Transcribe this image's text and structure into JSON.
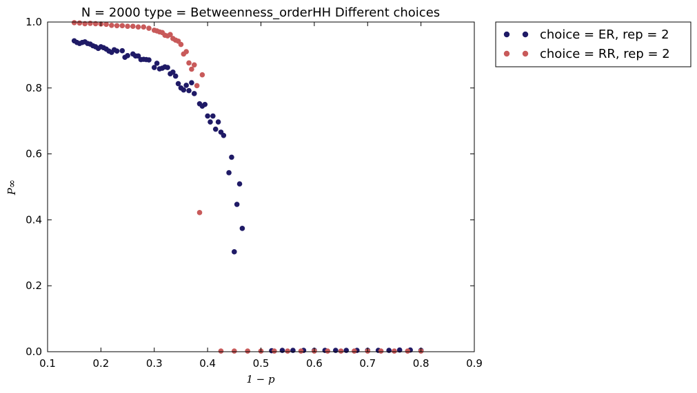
{
  "chart_data": {
    "type": "scatter",
    "title": "N = 2000 type = Betweenness_orderHH Different choices",
    "xlabel": "1 − p",
    "ylabel": "P∞",
    "xlim": [
      0.1,
      0.9
    ],
    "ylim": [
      0.0,
      1.0
    ],
    "xticks": [
      "0.1",
      "0.2",
      "0.3",
      "0.4",
      "0.5",
      "0.6",
      "0.7",
      "0.8",
      "0.9"
    ],
    "yticks": [
      "0.0",
      "0.2",
      "0.4",
      "0.6",
      "0.8",
      "1.0"
    ],
    "grid": false,
    "legend_position": "outside-top-right",
    "series": [
      {
        "name": "choice = ER, rep = 2",
        "color": "#1f1a66",
        "points": [
          [
            0.15,
            0.943
          ],
          [
            0.155,
            0.938
          ],
          [
            0.16,
            0.935
          ],
          [
            0.165,
            0.938
          ],
          [
            0.17,
            0.94
          ],
          [
            0.175,
            0.935
          ],
          [
            0.18,
            0.933
          ],
          [
            0.185,
            0.928
          ],
          [
            0.19,
            0.925
          ],
          [
            0.195,
            0.92
          ],
          [
            0.2,
            0.925
          ],
          [
            0.205,
            0.922
          ],
          [
            0.21,
            0.918
          ],
          [
            0.215,
            0.912
          ],
          [
            0.22,
            0.908
          ],
          [
            0.225,
            0.916
          ],
          [
            0.23,
            0.912
          ],
          [
            0.24,
            0.913
          ],
          [
            0.245,
            0.893
          ],
          [
            0.25,
            0.898
          ],
          [
            0.26,
            0.903
          ],
          [
            0.265,
            0.897
          ],
          [
            0.27,
            0.897
          ],
          [
            0.275,
            0.886
          ],
          [
            0.28,
            0.887
          ],
          [
            0.285,
            0.886
          ],
          [
            0.29,
            0.885
          ],
          [
            0.3,
            0.862
          ],
          [
            0.305,
            0.875
          ],
          [
            0.31,
            0.858
          ],
          [
            0.315,
            0.86
          ],
          [
            0.32,
            0.864
          ],
          [
            0.325,
            0.862
          ],
          [
            0.33,
            0.843
          ],
          [
            0.335,
            0.848
          ],
          [
            0.34,
            0.836
          ],
          [
            0.345,
            0.813
          ],
          [
            0.35,
            0.8
          ],
          [
            0.355,
            0.794
          ],
          [
            0.36,
            0.808
          ],
          [
            0.365,
            0.792
          ],
          [
            0.37,
            0.816
          ],
          [
            0.375,
            0.783
          ],
          [
            0.385,
            0.752
          ],
          [
            0.39,
            0.745
          ],
          [
            0.395,
            0.75
          ],
          [
            0.4,
            0.715
          ],
          [
            0.405,
            0.697
          ],
          [
            0.41,
            0.715
          ],
          [
            0.415,
            0.675
          ],
          [
            0.42,
            0.697
          ],
          [
            0.425,
            0.666
          ],
          [
            0.43,
            0.656
          ],
          [
            0.44,
            0.543
          ],
          [
            0.445,
            0.59
          ],
          [
            0.45,
            0.303
          ],
          [
            0.455,
            0.447
          ],
          [
            0.46,
            0.509
          ],
          [
            0.465,
            0.374
          ],
          [
            0.52,
            0.003
          ],
          [
            0.54,
            0.004
          ],
          [
            0.56,
            0.004
          ],
          [
            0.58,
            0.004
          ],
          [
            0.6,
            0.004
          ],
          [
            0.62,
            0.004
          ],
          [
            0.64,
            0.004
          ],
          [
            0.66,
            0.004
          ],
          [
            0.68,
            0.004
          ],
          [
            0.7,
            0.004
          ],
          [
            0.72,
            0.004
          ],
          [
            0.74,
            0.004
          ],
          [
            0.76,
            0.005
          ],
          [
            0.78,
            0.005
          ],
          [
            0.8,
            0.004
          ]
        ]
      },
      {
        "name": "choice = RR, rep = 2",
        "color": "#c85a5a",
        "points": [
          [
            0.15,
            0.998
          ],
          [
            0.16,
            0.997
          ],
          [
            0.17,
            0.995
          ],
          [
            0.18,
            0.996
          ],
          [
            0.19,
            0.995
          ],
          [
            0.2,
            0.994
          ],
          [
            0.21,
            0.993
          ],
          [
            0.22,
            0.99
          ],
          [
            0.23,
            0.989
          ],
          [
            0.24,
            0.989
          ],
          [
            0.25,
            0.987
          ],
          [
            0.26,
            0.987
          ],
          [
            0.27,
            0.985
          ],
          [
            0.28,
            0.985
          ],
          [
            0.29,
            0.981
          ],
          [
            0.3,
            0.975
          ],
          [
            0.305,
            0.973
          ],
          [
            0.31,
            0.97
          ],
          [
            0.315,
            0.968
          ],
          [
            0.32,
            0.96
          ],
          [
            0.325,
            0.958
          ],
          [
            0.33,
            0.962
          ],
          [
            0.335,
            0.95
          ],
          [
            0.34,
            0.945
          ],
          [
            0.345,
            0.942
          ],
          [
            0.35,
            0.932
          ],
          [
            0.355,
            0.903
          ],
          [
            0.36,
            0.91
          ],
          [
            0.365,
            0.876
          ],
          [
            0.37,
            0.857
          ],
          [
            0.375,
            0.87
          ],
          [
            0.38,
            0.807
          ],
          [
            0.385,
            0.422
          ],
          [
            0.39,
            0.84
          ],
          [
            0.425,
            0.002
          ],
          [
            0.45,
            0.002
          ],
          [
            0.475,
            0.002
          ],
          [
            0.5,
            0.002
          ],
          [
            0.525,
            0.002
          ],
          [
            0.55,
            0.002
          ],
          [
            0.575,
            0.002
          ],
          [
            0.6,
            0.002
          ],
          [
            0.625,
            0.002
          ],
          [
            0.65,
            0.002
          ],
          [
            0.675,
            0.002
          ],
          [
            0.7,
            0.002
          ],
          [
            0.725,
            0.002
          ],
          [
            0.75,
            0.002
          ],
          [
            0.775,
            0.002
          ],
          [
            0.8,
            0.002
          ]
        ]
      }
    ]
  }
}
